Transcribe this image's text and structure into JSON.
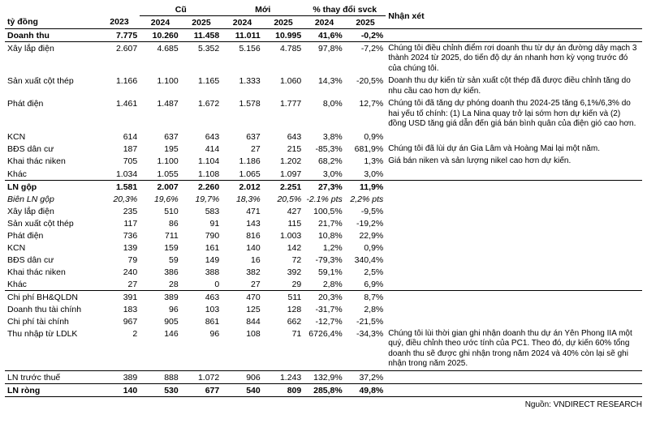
{
  "header": {
    "left_label": "tỷ đồng",
    "comment_label": "Nhận xét",
    "groups": {
      "old": "Cũ",
      "new": "Mới",
      "pct": "% thay đổi svck"
    },
    "years": {
      "y23": "2023",
      "y24": "2024",
      "y25": "2025"
    }
  },
  "rows": [
    {
      "label": "Doanh thu",
      "y23": "7.775",
      "o24": "10.260",
      "o25": "11.458",
      "n24": "11.011",
      "n25": "10.995",
      "p24": "41,6%",
      "p25": "-0,2%",
      "comment": "",
      "bold": true,
      "border": true
    },
    {
      "label": "Xây lắp điện",
      "y23": "2.607",
      "o24": "4.685",
      "o25": "5.352",
      "n24": "5.156",
      "n25": "4.785",
      "p24": "97,8%",
      "p25": "-7,2%",
      "comment": "Chúng tôi điều chỉnh điểm rơi doanh thu từ dự án đường dây mạch 3 thành 2024 từ 2025, do tiến độ dự án nhanh hơn kỳ vọng trước đó của chúng tôi."
    },
    {
      "label": "Sản xuất cột thép",
      "y23": "1.166",
      "o24": "1.100",
      "o25": "1.165",
      "n24": "1.333",
      "n25": "1.060",
      "p24": "14,3%",
      "p25": "-20,5%",
      "comment": "Doanh thu dự kiến từ sản xuất cột thép đã được điều chỉnh tăng do nhu cầu cao hơn dự kiến."
    },
    {
      "label": "Phát điện",
      "y23": "1.461",
      "o24": "1.487",
      "o25": "1.672",
      "n24": "1.578",
      "n25": "1.777",
      "p24": "8,0%",
      "p25": "12,7%",
      "comment": "Chúng tôi đã tăng dự phóng doanh thu 2024-25 tăng 6,1%/6,3% do hai yếu tố chính: (1) La Nina quay trở lại sớm hơn dự kiến và (2) đồng USD tăng giá dẫn đến giá bán bình quân của điện gió cao hơn."
    },
    {
      "label": "KCN",
      "y23": "614",
      "o24": "637",
      "o25": "643",
      "n24": "637",
      "n25": "643",
      "p24": "3,8%",
      "p25": "0,9%",
      "comment": ""
    },
    {
      "label": "BĐS dân cư",
      "y23": "187",
      "o24": "195",
      "o25": "414",
      "n24": "27",
      "n25": "215",
      "p24": "-85,3%",
      "p25": "681,9%",
      "comment": "Chúng tôi đã lùi dự án Gia Lâm và Hoàng Mai lại một năm."
    },
    {
      "label": "Khai thác niken",
      "y23": "705",
      "o24": "1.100",
      "o25": "1.104",
      "n24": "1.186",
      "n25": "1.202",
      "p24": "68,2%",
      "p25": "1,3%",
      "comment": "Giá bán niken và sản lượng nikel cao hơn dự kiến."
    },
    {
      "label": "Khác",
      "y23": "1.034",
      "o24": "1.055",
      "o25": "1.108",
      "n24": "1.065",
      "n25": "1.097",
      "p24": "3,0%",
      "p25": "3,0%",
      "comment": "",
      "border": true
    },
    {
      "label": "LN gộp",
      "y23": "1.581",
      "o24": "2.007",
      "o25": "2.260",
      "n24": "2.012",
      "n25": "2.251",
      "p24": "27,3%",
      "p25": "11,9%",
      "comment": "",
      "bold": true
    },
    {
      "label": "Biên LN gộp",
      "y23": "20,3%",
      "o24": "19,6%",
      "o25": "19,7%",
      "n24": "18,3%",
      "n25": "20,5%",
      "p24": "-2.1% pts",
      "p25": "2,2% pts",
      "comment": "",
      "italic": true
    },
    {
      "label": "Xây lắp điện",
      "y23": "235",
      "o24": "510",
      "o25": "583",
      "n24": "471",
      "n25": "427",
      "p24": "100,5%",
      "p25": "-9,5%",
      "comment": ""
    },
    {
      "label": "Sản xuất cột thép",
      "y23": "117",
      "o24": "86",
      "o25": "91",
      "n24": "143",
      "n25": "115",
      "p24": "21,7%",
      "p25": "-19,2%",
      "comment": ""
    },
    {
      "label": "Phát điện",
      "y23": "736",
      "o24": "711",
      "o25": "790",
      "n24": "816",
      "n25": "1.003",
      "p24": "10,8%",
      "p25": "22,9%",
      "comment": ""
    },
    {
      "label": "KCN",
      "y23": "139",
      "o24": "159",
      "o25": "161",
      "n24": "140",
      "n25": "142",
      "p24": "1,2%",
      "p25": "0,9%",
      "comment": ""
    },
    {
      "label": "BĐS dân cư",
      "y23": "79",
      "o24": "59",
      "o25": "149",
      "n24": "16",
      "n25": "72",
      "p24": "-79,3%",
      "p25": "340,4%",
      "comment": ""
    },
    {
      "label": "Khai thác niken",
      "y23": "240",
      "o24": "386",
      "o25": "388",
      "n24": "382",
      "n25": "392",
      "p24": "59,1%",
      "p25": "2,5%",
      "comment": ""
    },
    {
      "label": "Khác",
      "y23": "27",
      "o24": "28",
      "o25": "0",
      "n24": "27",
      "n25": "29",
      "p24": "2,8%",
      "p25": "6,9%",
      "comment": "",
      "border": true
    },
    {
      "label": "Chi phí BH&QLDN",
      "y23": "391",
      "o24": "389",
      "o25": "463",
      "n24": "470",
      "n25": "511",
      "p24": "20,3%",
      "p25": "8,7%",
      "comment": ""
    },
    {
      "label": "Doanh thu tài chính",
      "y23": "183",
      "o24": "96",
      "o25": "103",
      "n24": "125",
      "n25": "128",
      "p24": "-31,7%",
      "p25": "2,8%",
      "comment": ""
    },
    {
      "label": "Chi phí tài chính",
      "y23": "967",
      "o24": "905",
      "o25": "861",
      "n24": "844",
      "n25": "662",
      "p24": "-12,7%",
      "p25": "-21,5%",
      "comment": ""
    },
    {
      "label": "Thu nhập từ LDLK",
      "y23": "2",
      "o24": "146",
      "o25": "96",
      "n24": "108",
      "n25": "71",
      "p24": "6726,4%",
      "p25": "-34,3%",
      "comment": "Chúng tôi lùi thời gian ghi nhận doanh thu dự án Yên Phong IIA một quý, điều chỉnh theo ước tính của PC1. Theo đó, dự kiến 60% tổng doanh thu sẽ được ghi nhận trong năm 2024 và 40% còn lại sẽ ghi nhận trong năm 2025.",
      "border": true
    },
    {
      "label": "LN trước thuế",
      "y23": "389",
      "o24": "888",
      "o25": "1.072",
      "n24": "906",
      "n25": "1.243",
      "p24": "132,9%",
      "p25": "37,2%",
      "comment": "",
      "border": true
    },
    {
      "label": "LN ròng",
      "y23": "140",
      "o24": "530",
      "o25": "677",
      "n24": "540",
      "n25": "809",
      "p24": "285,8%",
      "p25": "49,8%",
      "comment": "",
      "bold": true,
      "border": true
    }
  ],
  "source": "Nguồn: VNDIRECT RESEARCH"
}
